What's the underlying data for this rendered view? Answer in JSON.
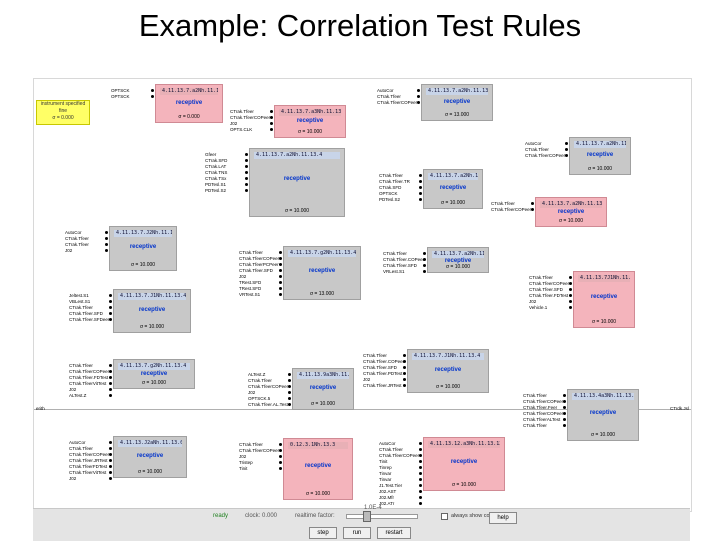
{
  "slide": {
    "title": "Example: Correlation Test Rules"
  },
  "canvas": {
    "edge_left": "erith",
    "edge_right": "CTrdk.Jsl"
  },
  "blocks": [
    {
      "header": "4.11.13.7.2Nh.11.13.4",
      "text": "receptive",
      "sigma": "σ = 0.000",
      "color": "gray"
    },
    {
      "header": "4.11.13.7.a2Nh.11.13.4",
      "text": "receptive",
      "sigma": "σ = 0.000",
      "color": "pink"
    },
    {
      "header": "4.11.13.7.a2Nh.11.13.4",
      "text": "receptive",
      "sigma": "σ = 13.000",
      "color": "gray"
    },
    {
      "header": "4.11.13.7.a3Nh.11.13.4",
      "text": "receptive",
      "sigma": "σ = 10.000",
      "color": "pink"
    },
    {
      "header": "4.11.13.7.a2Nh.11.13.4",
      "text": "receptive",
      "sigma": "σ = 10.000",
      "color": "gray"
    },
    {
      "header": "4.11.13.7.a2Nh.11.13.4",
      "text": "receptive",
      "sigma": "σ = 10.000",
      "color": "gray"
    },
    {
      "header": "4.11.13.7.a2Nh.11.13.4",
      "text": "receptive",
      "sigma": "σ = 10.000",
      "color": "gray"
    },
    {
      "header": "4.11.13.7.a2Nh.11.13.4",
      "text": "receptive",
      "sigma": "σ = 10.000",
      "color": "pink"
    },
    {
      "header": "4.11.13.7.J2Nh.11.13.4",
      "text": "receptive",
      "sigma": "σ = 10.000",
      "color": "gray"
    },
    {
      "header": "4.11.13.7.g2Nh.11.13.4",
      "text": "receptive",
      "sigma": "σ = 13.000",
      "color": "gray"
    },
    {
      "header": "4.11.13.7.a2Nh.11.13.4",
      "text": "receptive",
      "sigma": "σ = 10.000",
      "color": "gray"
    },
    {
      "header": "4.11.13.7.J1Nh.11.13.4",
      "text": "receptive",
      "sigma": "σ = 10.000",
      "color": "gray"
    },
    {
      "header": "4.11.13.7J1Nh.11.13.4",
      "text": "receptive",
      "sigma": "σ = 10.000",
      "color": "pink"
    },
    {
      "header": "4.11.13.7.J1Nh.11.13.4",
      "text": "receptive",
      "sigma": "σ = 10.000",
      "color": "gray"
    },
    {
      "header": "4.11.13.7.g2Nh.11.13.4",
      "text": "receptive",
      "sigma": "σ = 10.000",
      "color": "gray"
    },
    {
      "header": "4.11.13.9a3Nh.11.13.4",
      "text": "receptive",
      "sigma": "σ = 10.000",
      "color": "gray"
    },
    {
      "header": "4.11.13.4a3Nh.11.13.4",
      "text": "receptive",
      "sigma": "σ = 10.000",
      "color": "gray"
    },
    {
      "header": "4.11.13.J2aNh.11.13.0",
      "text": "receptive",
      "sigma": "σ = 10.000",
      "color": "gray"
    },
    {
      "header": "0.12.3.1Nh.13.3",
      "text": "receptive",
      "sigma": "σ = 10.000",
      "color": "pink"
    },
    {
      "header": "4.11.13.12.a3Nh.11.13.12",
      "text": "receptive",
      "sigma": "σ = 10.000",
      "color": "pink"
    }
  ],
  "notice": {
    "line1": "instrument specified",
    "line2": "fine",
    "sigma": "σ = 0.000"
  },
  "port_labels": {
    "b0": [
      "OPTSCK",
      "OPTSCK"
    ],
    "b1": [
      "AutoCor",
      "CTrak.Tfeer",
      "CTrak.TfeerCOPeer"
    ],
    "b2": [
      "CTrak.Tfeer",
      "CTrak.TfeerCOPeer",
      "J02",
      "OPTS.CLK"
    ],
    "b3": [
      "AutoCor",
      "CTrak.Tfeer",
      "CTrak.TfeerCOPeer"
    ],
    "b4": [
      "Gfeer",
      "CTrak.SFD",
      "CTrak.LAT",
      "CTrak.TNS",
      "CTrak.TSx",
      "PDTesl.S1",
      "PDTesl.S2"
    ],
    "b5": [
      "CTrak.Tfeer",
      "CTrak.Tfeer.TR",
      "CTrak.SFD",
      "OPTSCK",
      "PDTesl.S2"
    ],
    "b6": [
      "CTrak.Tfeer",
      "CTrak.TfeerCOPeer"
    ],
    "b7": [
      "AutoCor",
      "CTrak.Tfeer",
      "CTrak.Tfeer",
      "J02"
    ],
    "b8": [
      "CTrak.Tfeer",
      "CTrak.TfeerCOPeer",
      "CTrak.TfeerPCPeer",
      "CTrak.Tfeer.SFD",
      "J02",
      "TRest.SFD",
      "TRest.SFD",
      "VRTest.S1"
    ],
    "b9": [
      "CTrak.Tfeer",
      "CTrak.Tfeer.COPeer",
      "CTrak.Tfeer.SFD",
      "VRLest.S1"
    ],
    "b10": [
      "Jeltest.S1",
      "VBLest.S1",
      "CTrak.Tfeer",
      "CTrak.Tfeer.SFD",
      "CTrak.Tfeer.SFDeer"
    ],
    "b11": [
      "CTrak.Tfeer",
      "CTrak.TfeerCOPeer",
      "CTrak.Tfeer.SFD",
      "CTrak.Tfeer.FDTest",
      "J02",
      "Vehicle.1"
    ],
    "b12": [
      "CTrak.Tfeer",
      "CTrak.Tfeer.COPeer",
      "CTrak.Tfeer.SFD",
      "CTrak.Tfeer.PDTest",
      "J02",
      "CTrak.Tfeer.JRTest"
    ],
    "b13": [
      "CTrak.Tfeer",
      "CTrak.TfeerCOPeer",
      "CTrak.Tfeer.FDTest",
      "CTrak.TfeerVitTest",
      "J02",
      "ALTest.Z"
    ],
    "b14": [
      "ALTest.Z",
      "CTrak.Tfeer",
      "CTrak.TfeerCOPeer",
      "J02",
      "OPTSCK.5",
      "CTrak.Tfeer.AL.Test"
    ],
    "b15": [
      "CTrak.Tfeer",
      "CTrak.TfeerCOPeer",
      "CTrak.Tfeer.Feer",
      "CTrak.TfeerCOPeer",
      "CTrak.TfeerALTest",
      "CTrak.Tfeer"
    ],
    "b16": [
      "AutoCor",
      "CTrak.Tfeer",
      "CTrak.TfeerCOPeer",
      "CTrak.Tfeer.JRTest",
      "CTrak.TfeerFDTest",
      "CTrak.TfeerVitTest",
      "J02"
    ],
    "b17": [
      "CTrak.Tfeer",
      "CTrak.TfeerCOPeer",
      "J02",
      "Tristep",
      "Tinit"
    ],
    "b18": [
      "AutoCor",
      "CTrak.Tfeer",
      "CTrak.TfeerCOPeer",
      "Tinit",
      "Tinrep",
      "Tinvar",
      "Tinvar",
      "J1.Test.Tier",
      "J02.AST",
      "J02.Mfr",
      "J02.ATr",
      "J02.BV",
      "J02.Shomo",
      "J1.Sign",
      "Tristep",
      "Tinit"
    ],
    "b19": [
      "AutoCor",
      "CTrak.Shield",
      "CTrak.Tfeer",
      "CTrak.TfeerCOPeer",
      "CTrak.Tfeer",
      "CTrak.Tfeer",
      "CTrak.Tfeer",
      "J2Shield.A",
      "Tinit",
      "Thrutp",
      "Tinit",
      "Fti"
    ]
  },
  "controls": {
    "status": "ready",
    "clock": "clock: 0.000",
    "realtime_label": "realtime factor:",
    "realtime_value": "1.0E-4",
    "always_show": "always show coupling",
    "help": "help",
    "step": "step",
    "run": "run",
    "restart": "restart"
  },
  "colors": {
    "block": "#c8c8c8",
    "pink_block": "#f4b4bc",
    "header": "#c8d4e8",
    "receptive": "#0033cc",
    "notice": "#ffff66"
  }
}
